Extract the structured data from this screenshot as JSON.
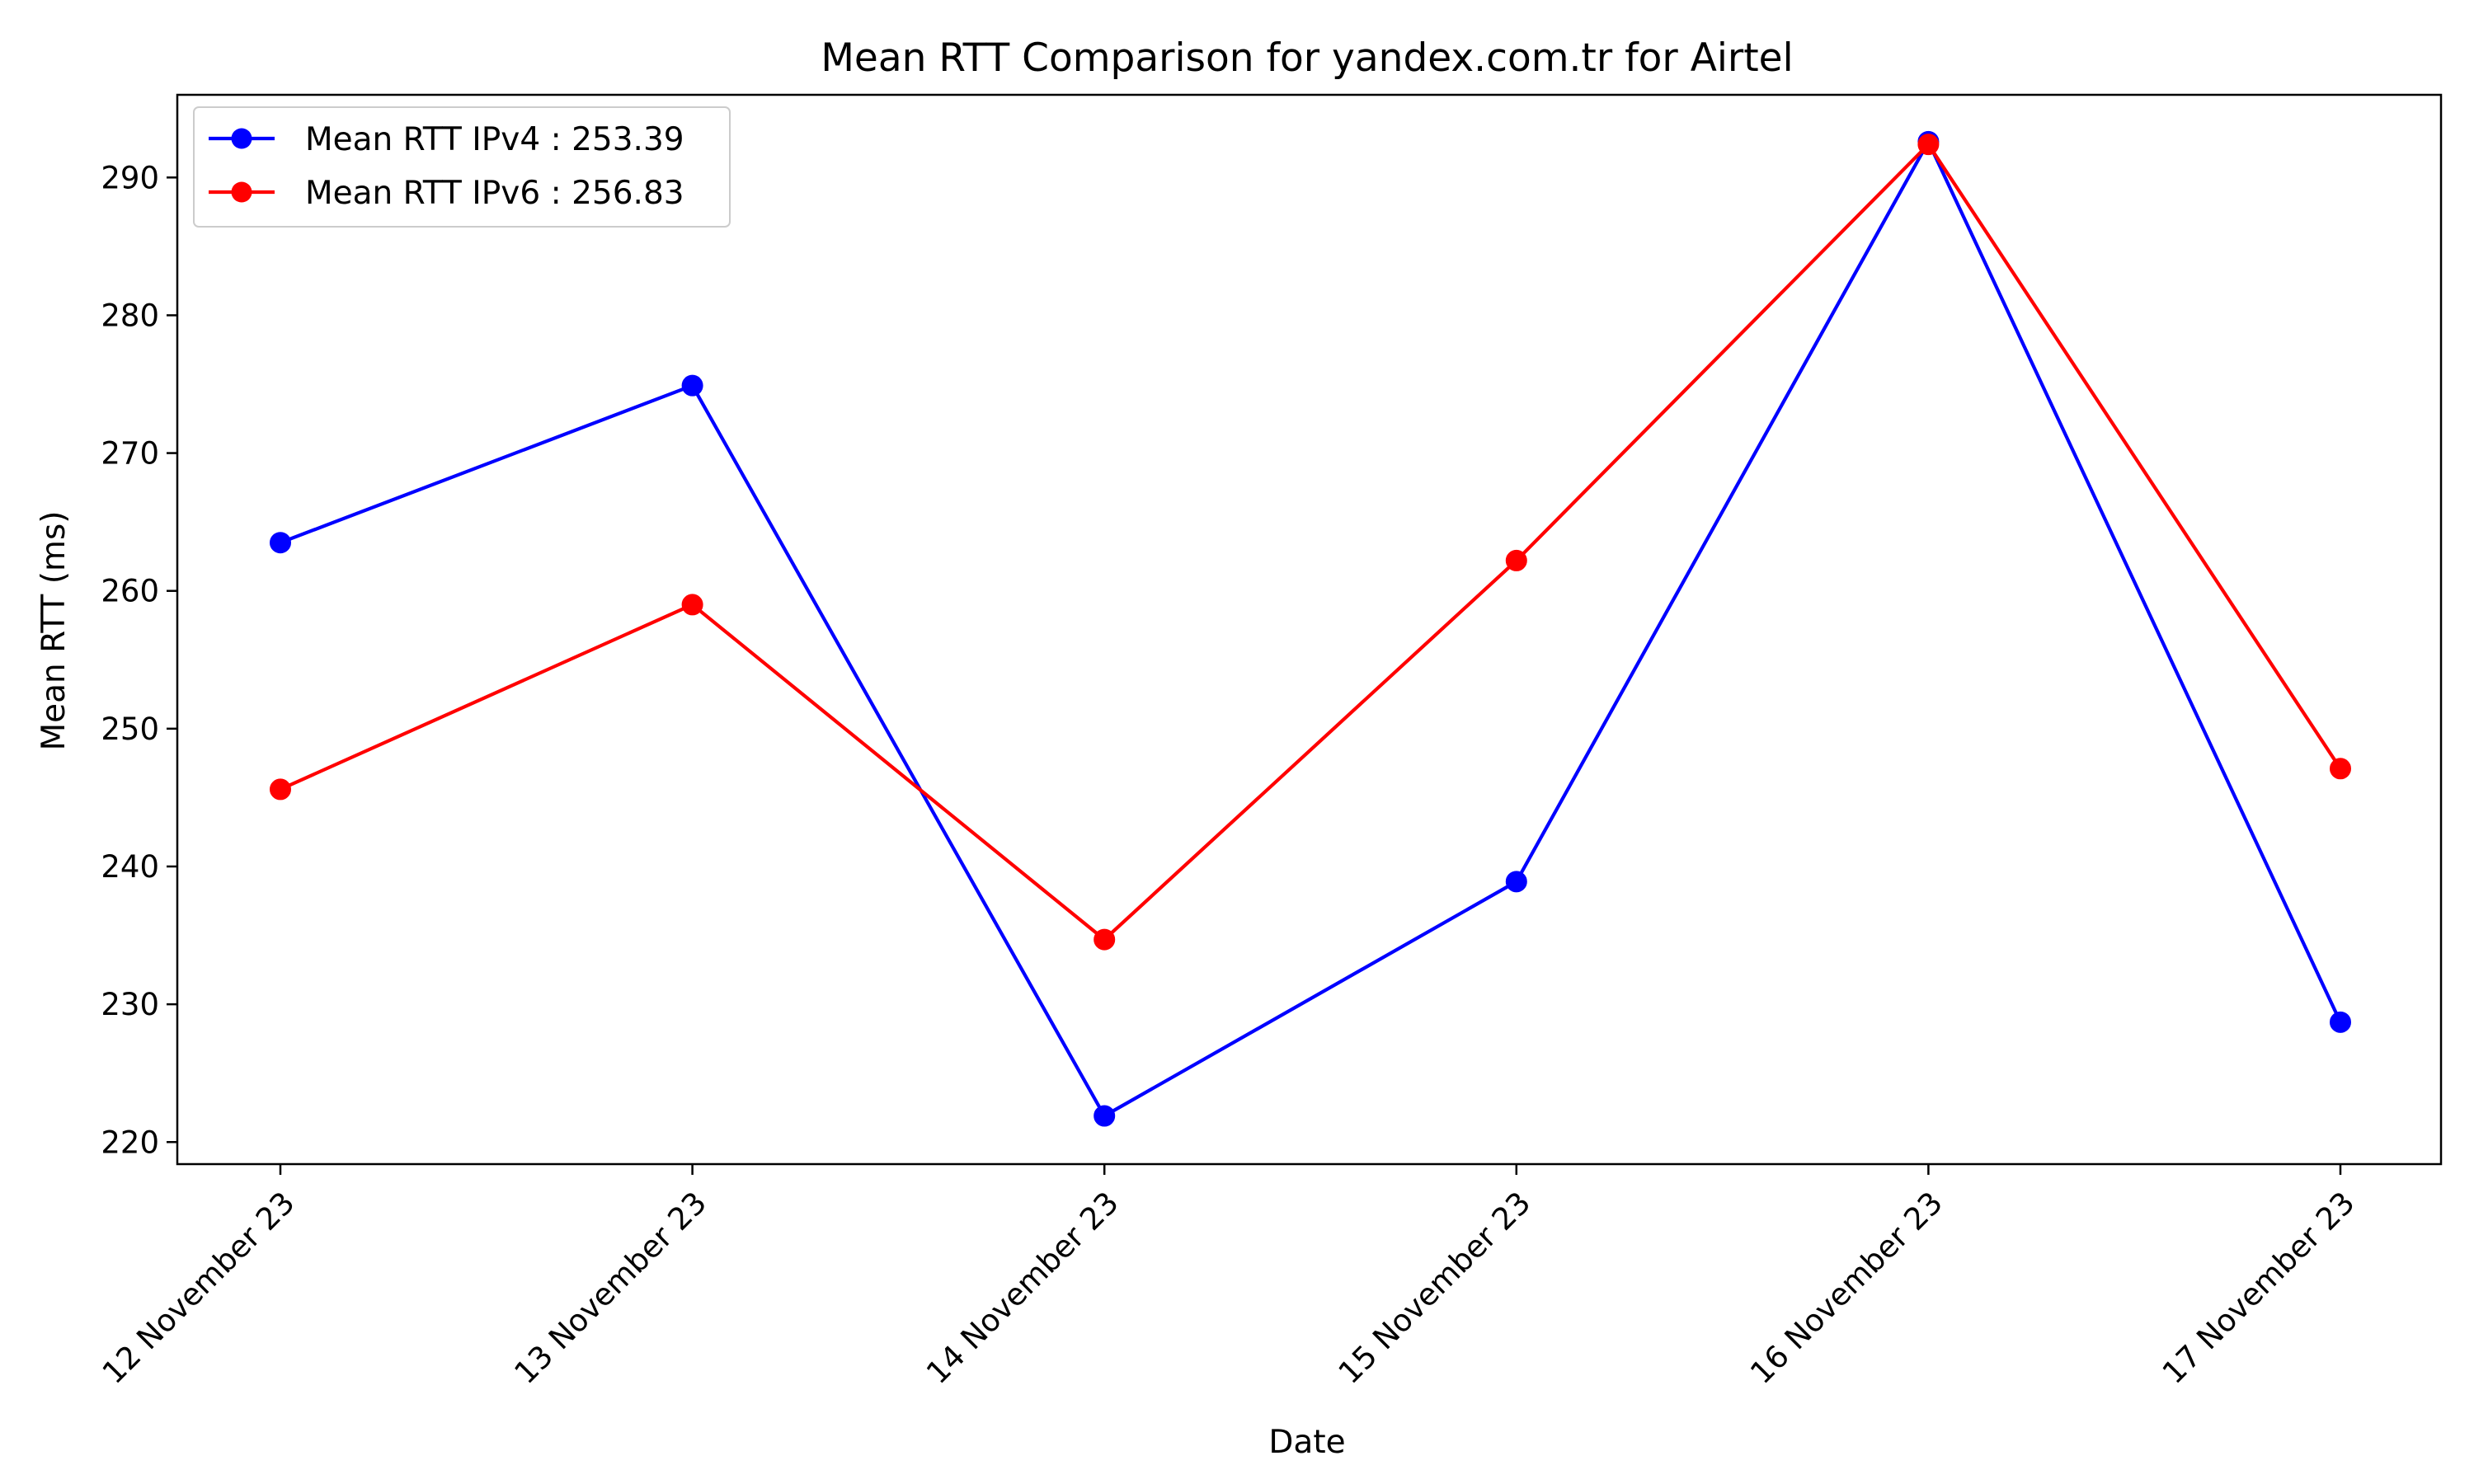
{
  "chart_data": {
    "type": "line",
    "title": "Mean RTT Comparison for yandex.com.tr for Airtel",
    "xlabel": "Date",
    "ylabel": "Mean RTT (ms)",
    "categories": [
      "12 November 23",
      "13 November 23",
      "14 November 23",
      "15 November 23",
      "16 November 23",
      "17 November 23"
    ],
    "yticks": [
      220,
      230,
      240,
      250,
      260,
      270,
      280,
      290
    ],
    "ylim": [
      218.4,
      296.0
    ],
    "grid": false,
    "legend_position": "top-left",
    "series": [
      {
        "name": "Mean RTT IPv4 : 253.39",
        "color": "#0000ff",
        "values": [
          263.5,
          274.9,
          221.9,
          238.9,
          292.6,
          228.7
        ]
      },
      {
        "name": "Mean RTT IPv6 : 256.83",
        "color": "#ff0000",
        "values": [
          245.6,
          259.0,
          234.7,
          262.2,
          292.4,
          247.1
        ]
      }
    ]
  }
}
